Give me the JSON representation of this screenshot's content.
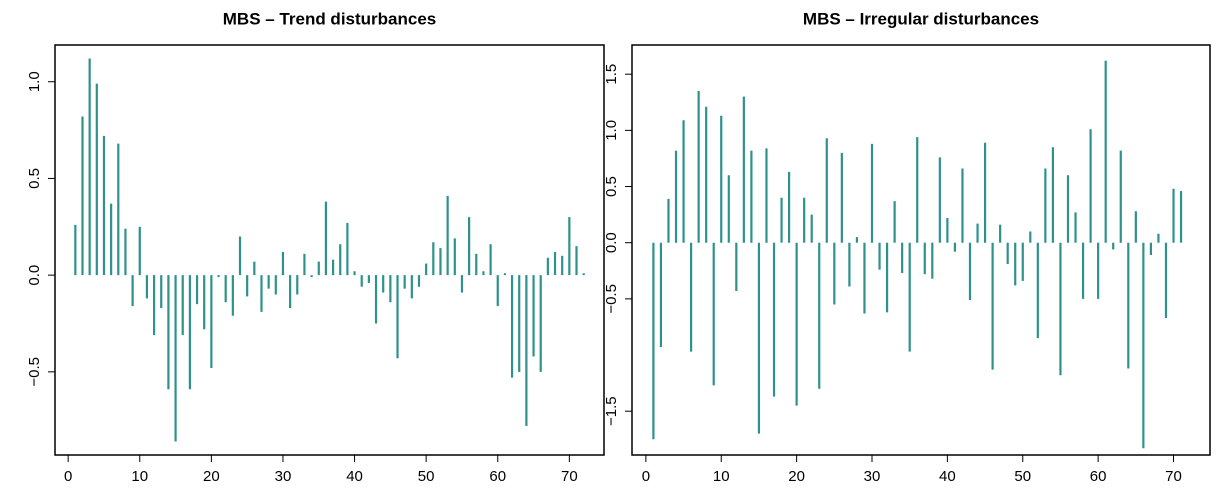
{
  "chart_data": [
    {
      "type": "spike",
      "title": "MBS – Trend disturbances",
      "color": "#2e918c",
      "x": [
        1,
        2,
        3,
        4,
        5,
        6,
        7,
        8,
        9,
        10,
        11,
        12,
        13,
        14,
        15,
        16,
        17,
        18,
        19,
        20,
        21,
        22,
        23,
        24,
        25,
        26,
        27,
        28,
        29,
        30,
        31,
        32,
        33,
        34,
        35,
        36,
        37,
        38,
        39,
        40,
        41,
        42,
        43,
        44,
        45,
        46,
        47,
        48,
        49,
        50,
        51,
        52,
        53,
        54,
        55,
        56,
        57,
        58,
        59,
        60,
        61,
        62,
        63,
        64,
        65,
        66,
        67,
        68,
        69,
        70,
        71,
        72
      ],
      "values": [
        0.26,
        0.82,
        1.12,
        0.99,
        0.72,
        0.37,
        0.68,
        0.24,
        -0.16,
        0.25,
        -0.12,
        -0.31,
        -0.17,
        -0.59,
        -0.86,
        -0.31,
        -0.59,
        -0.15,
        -0.28,
        -0.48,
        -0.01,
        -0.14,
        -0.21,
        0.2,
        -0.11,
        0.07,
        -0.19,
        -0.07,
        -0.1,
        0.12,
        -0.17,
        -0.1,
        0.11,
        -0.01,
        0.07,
        0.38,
        0.08,
        0.16,
        0.27,
        0.02,
        -0.06,
        -0.04,
        -0.25,
        -0.09,
        -0.14,
        -0.43,
        -0.07,
        -0.12,
        -0.06,
        0.06,
        0.17,
        0.14,
        0.41,
        0.19,
        -0.09,
        0.3,
        0.11,
        0.02,
        0.16,
        -0.16,
        0.01,
        -0.53,
        -0.5,
        -0.78,
        -0.42,
        -0.5,
        0.09,
        0.12,
        0.1,
        0.3,
        0.15,
        0.01
      ],
      "xlim": [
        -1.84,
        74.84
      ],
      "xticks": [
        0,
        10,
        20,
        30,
        40,
        50,
        60,
        70
      ],
      "ylim": [
        -0.93,
        1.19
      ],
      "yticks": [
        {
          "value": -0.5,
          "label": "−0.5"
        },
        {
          "value": 0,
          "label": "0.0"
        },
        0.5,
        {
          "value": 1,
          "label": "1.0"
        }
      ]
    },
    {
      "type": "spike",
      "title": "MBS – Irregular disturbances",
      "color": "#2e918c",
      "x": [
        1,
        2,
        3,
        4,
        5,
        6,
        7,
        8,
        9,
        10,
        11,
        12,
        13,
        14,
        15,
        16,
        17,
        18,
        19,
        20,
        21,
        22,
        23,
        24,
        25,
        26,
        27,
        28,
        29,
        30,
        31,
        32,
        33,
        34,
        35,
        36,
        37,
        38,
        39,
        40,
        41,
        42,
        43,
        44,
        45,
        46,
        47,
        48,
        49,
        50,
        51,
        52,
        53,
        54,
        55,
        56,
        57,
        58,
        59,
        60,
        61,
        62,
        63,
        64,
        65,
        66,
        67,
        68,
        69,
        70,
        71,
        72
      ],
      "values": [
        -1.75,
        -0.93,
        0.39,
        0.82,
        1.09,
        -0.97,
        1.35,
        1.21,
        -1.27,
        1.13,
        0.6,
        -0.43,
        1.3,
        0.82,
        -1.7,
        0.84,
        -1.37,
        0.4,
        0.63,
        -1.45,
        0.4,
        0.25,
        -1.3,
        0.93,
        -0.55,
        0.8,
        -0.39,
        0.05,
        -0.63,
        0.88,
        -0.24,
        -0.62,
        0.37,
        -0.27,
        -0.97,
        0.94,
        -0.28,
        -0.32,
        0.76,
        0.22,
        -0.08,
        0.66,
        -0.51,
        0.17,
        0.89,
        -1.13,
        0.16,
        -0.19,
        -0.38,
        -0.34,
        0.1,
        -0.85,
        0.66,
        0.85,
        -1.18,
        0.6,
        0.27,
        -0.5,
        1.01,
        -0.5,
        1.62,
        -0.06,
        0.82,
        -1.12,
        0.28,
        -1.83,
        -0.11,
        0.08,
        -0.67,
        0.48,
        0.46,
        0
      ],
      "xlim": [
        -1.84,
        74.84
      ],
      "xticks": [
        0,
        10,
        20,
        30,
        40,
        50,
        60,
        70
      ],
      "ylim": [
        -1.89,
        1.76
      ],
      "yticks": [
        {
          "value": -1.5,
          "label": "−1.5"
        },
        {
          "value": -0.5,
          "label": "−0.5"
        },
        {
          "value": 0,
          "label": "0.0"
        },
        0.5,
        {
          "value": 1,
          "label": "1.0"
        },
        1.5
      ]
    }
  ]
}
